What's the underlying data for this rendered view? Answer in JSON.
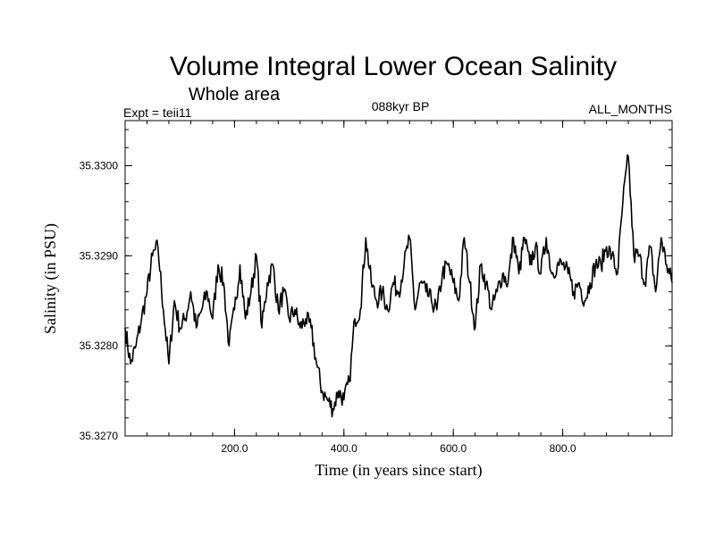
{
  "header": {
    "title": "Volume Integral Lower Ocean Salinity",
    "subtitle": "Whole area",
    "experiment": "Expt = teii11",
    "period": "088kyr BP",
    "months": "ALL_MONTHS"
  },
  "chart_data": {
    "type": "line",
    "title": "Volume Integral Lower Ocean Salinity",
    "subtitle": "Whole area",
    "xlabel": "Time (in years since start)",
    "ylabel": "Salinity (in PSU)",
    "xlim": [
      0,
      1000
    ],
    "ylim": [
      35.327,
      35.3305
    ],
    "x_ticks": [
      {
        "value": 200,
        "label": "200.0"
      },
      {
        "value": 400,
        "label": "400.0"
      },
      {
        "value": 600,
        "label": "600.0"
      },
      {
        "value": 800,
        "label": "800.0"
      }
    ],
    "y_ticks": [
      {
        "value": 35.327,
        "label": "35.3270"
      },
      {
        "value": 35.328,
        "label": "35.3280"
      },
      {
        "value": 35.329,
        "label": "35.3290"
      },
      {
        "value": 35.33,
        "label": "35.3300"
      }
    ],
    "grid": false,
    "series": [
      {
        "x": [
          0,
          10,
          20,
          30,
          40,
          50,
          60,
          70,
          80,
          90,
          100,
          110,
          120,
          130,
          140,
          150,
          160,
          170,
          180,
          190,
          200,
          210,
          220,
          230,
          240,
          250,
          260,
          270,
          280,
          290,
          300,
          310,
          320,
          330,
          340,
          350,
          360,
          370,
          380,
          390,
          400,
          410,
          420,
          430,
          440,
          450,
          460,
          470,
          480,
          490,
          500,
          510,
          520,
          530,
          540,
          550,
          560,
          570,
          580,
          590,
          600,
          610,
          620,
          630,
          640,
          650,
          660,
          670,
          680,
          690,
          700,
          710,
          720,
          730,
          740,
          750,
          760,
          770,
          780,
          790,
          800,
          810,
          820,
          830,
          840,
          850,
          860,
          870,
          880,
          890,
          900,
          910,
          920,
          930,
          940,
          950,
          960,
          970,
          980,
          990,
          1000
        ],
        "values": [
          35.3282,
          35.3278,
          35.328,
          35.3283,
          35.3286,
          35.329,
          35.3291,
          35.3284,
          35.3278,
          35.3285,
          35.3282,
          35.3283,
          35.3286,
          35.3282,
          35.3284,
          35.3286,
          35.3283,
          35.3289,
          35.3287,
          35.328,
          35.3284,
          35.3289,
          35.3283,
          35.3286,
          35.329,
          35.3282,
          35.3287,
          35.3289,
          35.3284,
          35.3286,
          35.3283,
          35.3284,
          35.3282,
          35.3283,
          35.3282,
          35.3278,
          35.3275,
          35.3274,
          35.3273,
          35.3275,
          35.3274,
          35.3276,
          35.3283,
          35.3284,
          35.3292,
          35.3287,
          35.3285,
          35.3286,
          35.3284,
          35.3287,
          35.3286,
          35.3289,
          35.3292,
          35.3284,
          35.3287,
          35.3286,
          35.3285,
          35.3284,
          35.3288,
          35.3289,
          35.3287,
          35.3285,
          35.3292,
          35.3287,
          35.3282,
          35.3289,
          35.3287,
          35.3284,
          35.3286,
          35.3288,
          35.3287,
          35.3292,
          35.3288,
          35.3292,
          35.3289,
          35.3291,
          35.3288,
          35.3292,
          35.3288,
          35.3289,
          35.3289,
          35.3288,
          35.3286,
          35.3287,
          35.3285,
          35.3287,
          35.3289,
          35.3289,
          35.3291,
          35.329,
          35.3288,
          35.3296,
          35.3301,
          35.329,
          35.329,
          35.3287,
          35.3291,
          35.3286,
          35.3292,
          35.3289,
          35.3287
        ]
      }
    ]
  }
}
